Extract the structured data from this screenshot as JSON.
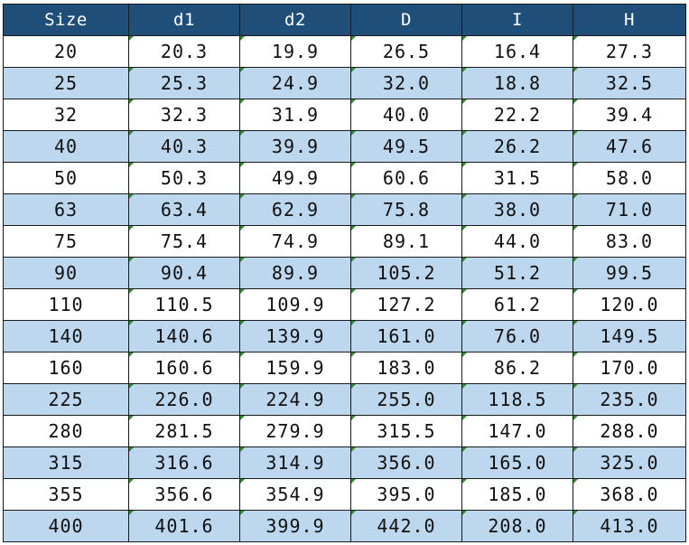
{
  "table": {
    "headers": [
      "Size",
      "d1",
      "d2",
      "D",
      "I",
      "H"
    ],
    "rows": [
      [
        "20",
        "20.3",
        "19.9",
        "26.5",
        "16.4",
        "27.3"
      ],
      [
        "25",
        "25.3",
        "24.9",
        "32.0",
        "18.8",
        "32.5"
      ],
      [
        "32",
        "32.3",
        "31.9",
        "40.0",
        "22.2",
        "39.4"
      ],
      [
        "40",
        "40.3",
        "39.9",
        "49.5",
        "26.2",
        "47.6"
      ],
      [
        "50",
        "50.3",
        "49.9",
        "60.6",
        "31.5",
        "58.0"
      ],
      [
        "63",
        "63.4",
        "62.9",
        "75.8",
        "38.0",
        "71.0"
      ],
      [
        "75",
        "75.4",
        "74.9",
        "89.1",
        "44.0",
        "83.0"
      ],
      [
        "90",
        "90.4",
        "89.9",
        "105.2",
        "51.2",
        "99.5"
      ],
      [
        "110",
        "110.5",
        "109.9",
        "127.2",
        "61.2",
        "120.0"
      ],
      [
        "140",
        "140.6",
        "139.9",
        "161.0",
        "76.0",
        "149.5"
      ],
      [
        "160",
        "160.6",
        "159.9",
        "183.0",
        "86.2",
        "170.0"
      ],
      [
        "225",
        "226.0",
        "224.9",
        "255.0",
        "118.5",
        "235.0"
      ],
      [
        "280",
        "281.5",
        "279.9",
        "315.5",
        "147.0",
        "288.0"
      ],
      [
        "315",
        "316.6",
        "314.9",
        "356.0",
        "165.0",
        "325.0"
      ],
      [
        "355",
        "356.6",
        "354.9",
        "395.0",
        "185.0",
        "368.0"
      ],
      [
        "400",
        "401.6",
        "399.9",
        "442.0",
        "208.0",
        "413.0"
      ]
    ]
  },
  "colors": {
    "header_bg": "#1f4e79",
    "header_text": "#ffffff",
    "row_alt_bg": "#bdd7ee",
    "row_bg": "#ffffff",
    "cell_marker": "#2e8b2e"
  }
}
